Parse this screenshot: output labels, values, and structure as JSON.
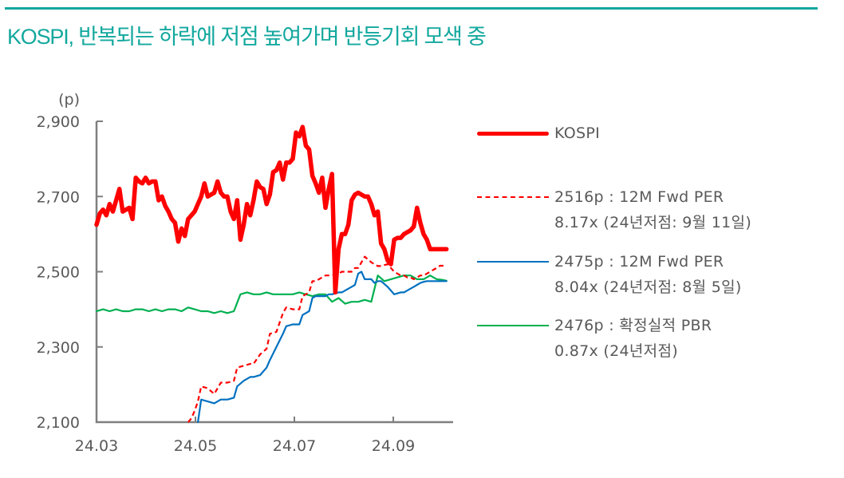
{
  "header": {
    "title": "KOSPI, 반복되는 하락에 저점 높여가며 반등기회 모색 중",
    "accent_color": "#13a89e"
  },
  "chart_data": {
    "type": "line",
    "title": "KOSPI, 반복되는 하락에 저점 높여가며 반등기회 모색 중",
    "xlabel": "",
    "ylabel": "(p)",
    "unit_label": "(p)",
    "ylim": [
      2100,
      2900
    ],
    "yticks": [
      "2,100",
      "2,300",
      "2,500",
      "2,700",
      "2,900"
    ],
    "xticks": [
      "24.03",
      "24.05",
      "24.07",
      "24.09"
    ],
    "grid": false,
    "legend_position": "right",
    "series": [
      {
        "name": "KOSPI",
        "color": "#ff0000",
        "style": "solid-thick",
        "x_days": [
          0,
          2,
          4,
          6,
          8,
          10,
          12,
          14,
          16,
          18,
          20,
          22,
          24,
          26,
          28,
          30,
          32,
          34,
          36,
          38,
          40,
          42,
          44,
          46,
          48,
          50,
          52,
          54,
          56,
          58,
          60,
          62,
          64,
          66,
          68,
          70,
          72,
          74,
          76,
          78,
          80,
          82,
          84,
          86,
          88,
          90,
          92,
          94,
          96,
          98,
          100,
          102,
          104,
          106,
          108,
          110,
          112,
          114,
          116,
          118,
          120,
          122,
          124,
          126,
          128,
          130,
          132,
          134,
          136,
          138,
          140,
          142,
          144,
          146,
          148,
          150,
          152,
          154,
          156,
          158,
          160,
          162,
          164,
          166,
          168,
          170,
          172,
          174,
          176,
          178,
          180,
          182,
          184,
          186,
          188,
          190,
          192,
          194,
          196,
          198,
          200,
          202,
          204,
          206,
          208,
          210,
          212,
          214
        ],
        "values": [
          2625,
          2655,
          2665,
          2650,
          2680,
          2660,
          2690,
          2720,
          2660,
          2665,
          2670,
          2640,
          2750,
          2740,
          2735,
          2750,
          2735,
          2740,
          2740,
          2690,
          2700,
          2675,
          2660,
          2640,
          2630,
          2580,
          2615,
          2595,
          2640,
          2650,
          2660,
          2680,
          2700,
          2735,
          2700,
          2705,
          2710,
          2740,
          2710,
          2700,
          2700,
          2660,
          2640,
          2690,
          2585,
          2625,
          2680,
          2650,
          2690,
          2740,
          2725,
          2720,
          2680,
          2705,
          2765,
          2770,
          2790,
          2745,
          2790,
          2790,
          2800,
          2870,
          2860,
          2885,
          2835,
          2825,
          2755,
          2735,
          2710,
          2750,
          2670,
          2720,
          2760,
          2445,
          2560,
          2600,
          2600,
          2625,
          2690,
          2705,
          2710,
          2705,
          2700,
          2700,
          2680,
          2650,
          2660,
          2575,
          2560,
          2530,
          2520,
          2585,
          2590,
          2590,
          2600,
          2605,
          2610,
          2620,
          2670,
          2630,
          2600,
          2585,
          2560,
          2560,
          2560,
          2560,
          2560,
          2560
        ],
        "last_value": 2560
      },
      {
        "name": "2516p : 12M Fwd PER 8.17x (24년저점: 9월 11일)",
        "color": "#ff0000",
        "style": "dashed",
        "x_days": [
          56,
          58,
          60,
          62,
          64,
          68,
          72,
          76,
          80,
          84,
          86,
          90,
          94,
          96,
          100,
          104,
          106,
          110,
          114,
          116,
          120,
          124,
          126,
          130,
          132,
          134,
          136,
          140,
          142,
          144,
          148,
          150,
          152,
          156,
          158,
          160,
          164,
          168,
          170,
          172,
          174,
          178,
          180,
          182,
          186,
          188,
          190,
          192,
          194,
          196,
          198,
          200,
          202,
          204,
          206,
          208,
          210,
          212,
          214
        ],
        "values": [
          2100,
          2110,
          2130,
          2155,
          2195,
          2190,
          2175,
          2205,
          2205,
          2210,
          2245,
          2250,
          2255,
          2255,
          2280,
          2295,
          2335,
          2340,
          2390,
          2405,
          2400,
          2400,
          2435,
          2445,
          2475,
          2475,
          2480,
          2490,
          2490,
          2490,
          2495,
          2500,
          2500,
          2500,
          2510,
          2510,
          2540,
          2525,
          2520,
          2515,
          2515,
          2520,
          2510,
          2500,
          2490,
          2490,
          2485,
          2485,
          2480,
          2485,
          2490,
          2490,
          2495,
          2500,
          2505,
          2510,
          2516,
          2516,
          2516
        ],
        "last_value": 2516
      },
      {
        "name": "2475p : 12M Fwd PER 8.04x (24년저점: 8월 5일)",
        "color": "#0070c0",
        "style": "solid",
        "x_days": [
          62,
          64,
          68,
          72,
          76,
          80,
          84,
          86,
          90,
          94,
          96,
          100,
          104,
          106,
          110,
          114,
          116,
          120,
          124,
          126,
          130,
          132,
          134,
          136,
          140,
          142,
          144,
          148,
          150,
          152,
          156,
          158,
          160,
          162,
          164,
          168,
          170,
          172,
          174,
          178,
          180,
          182,
          186,
          188,
          190,
          192,
          194,
          196,
          198,
          200,
          202,
          204,
          206,
          208,
          210,
          212,
          214
        ],
        "values": [
          2100,
          2160,
          2155,
          2150,
          2160,
          2160,
          2165,
          2195,
          2210,
          2220,
          2220,
          2225,
          2245,
          2265,
          2300,
          2335,
          2355,
          2360,
          2360,
          2385,
          2395,
          2430,
          2435,
          2435,
          2435,
          2440,
          2440,
          2445,
          2445,
          2450,
          2460,
          2465,
          2495,
          2500,
          2480,
          2480,
          2470,
          2475,
          2475,
          2460,
          2450,
          2440,
          2445,
          2445,
          2450,
          2455,
          2460,
          2465,
          2470,
          2473,
          2475,
          2475,
          2475,
          2475,
          2475,
          2475,
          2475
        ],
        "last_value": 2475
      },
      {
        "name": "2476p : 확정실적 PBR 0.87x (24년저점)",
        "color": "#00b050",
        "style": "solid",
        "x_days": [
          0,
          4,
          8,
          12,
          16,
          20,
          24,
          28,
          32,
          36,
          40,
          44,
          48,
          52,
          56,
          60,
          64,
          68,
          72,
          76,
          80,
          84,
          88,
          92,
          96,
          100,
          104,
          108,
          112,
          116,
          120,
          124,
          128,
          132,
          136,
          140,
          144,
          148,
          152,
          156,
          160,
          164,
          168,
          172,
          176,
          180,
          184,
          188,
          192,
          196,
          200,
          204,
          208,
          212,
          214
        ],
        "values": [
          2395,
          2400,
          2395,
          2400,
          2395,
          2395,
          2400,
          2400,
          2395,
          2400,
          2395,
          2400,
          2400,
          2395,
          2405,
          2400,
          2395,
          2395,
          2390,
          2395,
          2390,
          2395,
          2440,
          2445,
          2440,
          2440,
          2445,
          2440,
          2440,
          2440,
          2440,
          2445,
          2440,
          2435,
          2440,
          2440,
          2420,
          2430,
          2415,
          2420,
          2420,
          2425,
          2420,
          2490,
          2475,
          2480,
          2485,
          2490,
          2490,
          2480,
          2480,
          2490,
          2480,
          2478,
          2476
        ],
        "last_value": 2476
      }
    ]
  },
  "legend": {
    "items": [
      {
        "line1": "KOSPI",
        "line2": ""
      },
      {
        "line1": "2516p  : 12M  Fwd  PER",
        "line2": "8.17x  (24년저점:  9월  11일)"
      },
      {
        "line1": "2475p  : 12M  Fwd  PER",
        "line2": "8.04x  (24년저점:  8월  5일)"
      },
      {
        "line1": "2476p  : 확정실적  PBR",
        "line2": "0.87x  (24년저점)"
      }
    ]
  }
}
